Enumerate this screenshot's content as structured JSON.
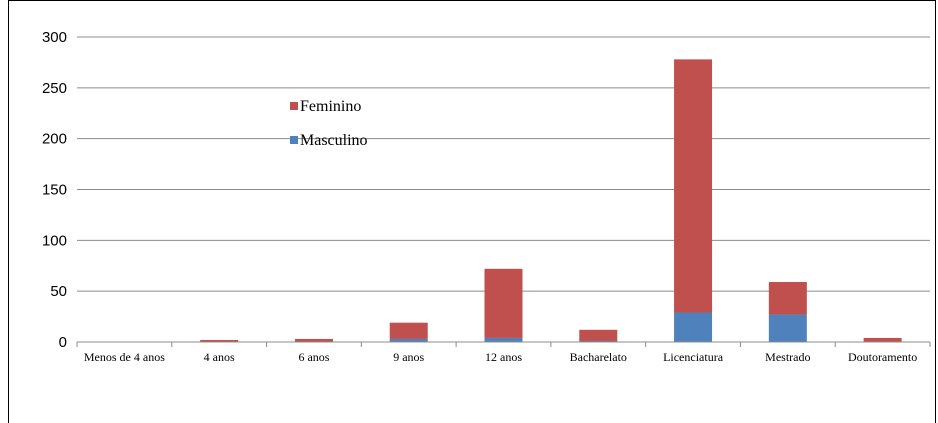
{
  "chart_data": {
    "type": "bar",
    "stacked": true,
    "categories": [
      "Menos de 4 anos",
      "4 anos",
      "6 anos",
      "9 anos",
      "12 anos",
      "Bacharelato",
      "Licenciatura",
      "Mestrado",
      "Doutoramento"
    ],
    "series": [
      {
        "name": "Masculino",
        "color": "#4f81bd",
        "values": [
          0,
          0,
          0,
          3,
          4,
          1,
          29,
          27,
          0
        ]
      },
      {
        "name": "Feminino",
        "color": "#c0504d",
        "values": [
          0,
          2,
          3,
          16,
          68,
          11,
          249,
          32,
          4
        ]
      }
    ],
    "ylim": [
      0,
      300
    ],
    "yticks": [
      "0",
      "50",
      "100",
      "150",
      "200",
      "250",
      "300"
    ],
    "grid": true,
    "legend_position": "top-left inside plot",
    "legend_order": [
      "Feminino",
      "Masculino"
    ],
    "title": "",
    "xlabel": "",
    "ylabel": ""
  }
}
